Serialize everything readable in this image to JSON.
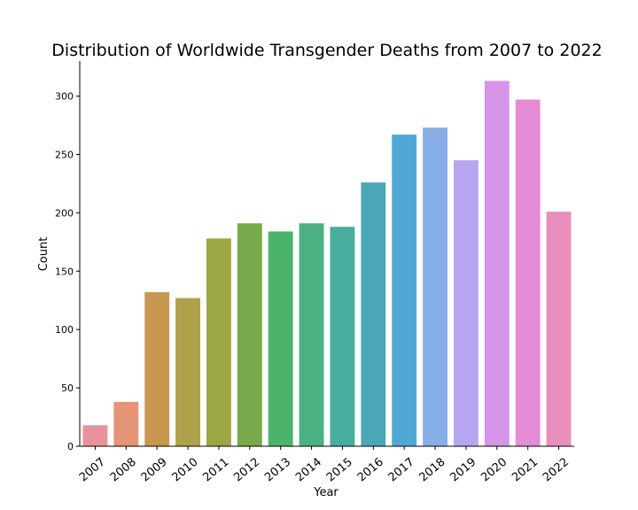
{
  "chart_data": {
    "type": "bar",
    "title": "Distribution of Worldwide Transgender Deaths from 2007 to 2022",
    "xlabel": "Year",
    "ylabel": "Count",
    "categories": [
      "2007",
      "2008",
      "2009",
      "2010",
      "2011",
      "2012",
      "2013",
      "2014",
      "2015",
      "2016",
      "2017",
      "2018",
      "2019",
      "2020",
      "2021",
      "2022"
    ],
    "values": [
      18,
      38,
      132,
      127,
      178,
      191,
      184,
      191,
      188,
      226,
      267,
      273,
      245,
      313,
      297,
      201
    ],
    "colors": [
      "#e8929b",
      "#e59576",
      "#c79750",
      "#afa04b",
      "#9da644",
      "#78aa4b",
      "#4bb46a",
      "#4bb183",
      "#49ad9e",
      "#4aa8b6",
      "#50a9d4",
      "#88aee8",
      "#b6a6ef",
      "#d695e9",
      "#e58cd6",
      "#e98fbb"
    ],
    "ylim": [
      0,
      330
    ],
    "yticks": [
      0,
      50,
      100,
      150,
      200,
      250,
      300
    ],
    "grid": false,
    "legend": "none"
  }
}
